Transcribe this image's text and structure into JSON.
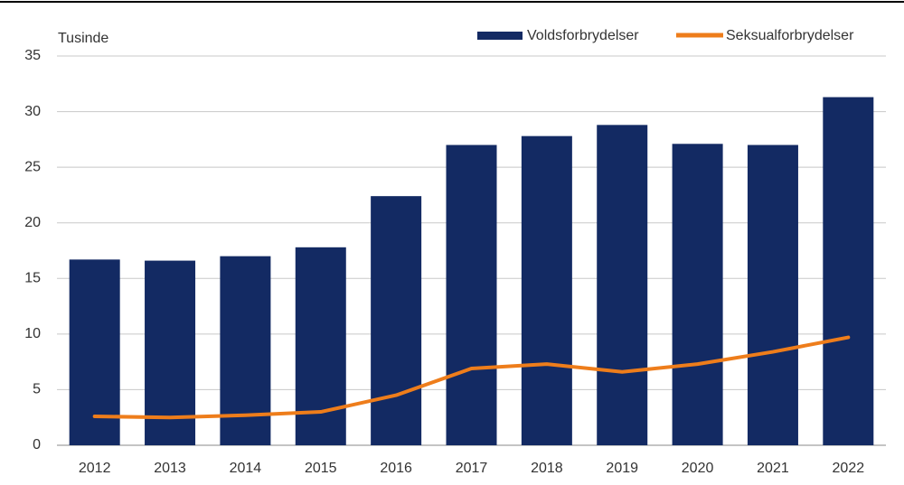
{
  "chart_data": {
    "type": "bar",
    "y_label": "Tusinde",
    "categories": [
      "2012",
      "2013",
      "2014",
      "2015",
      "2016",
      "2017",
      "2018",
      "2019",
      "2020",
      "2021",
      "2022"
    ],
    "series": [
      {
        "name": "Voldsforbrydelser",
        "type": "bar",
        "color": "#132a63",
        "values": [
          16.7,
          16.6,
          17.0,
          17.8,
          22.4,
          27.0,
          27.8,
          28.8,
          27.1,
          27.0,
          31.3
        ]
      },
      {
        "name": "Seksualforbrydelser",
        "type": "line",
        "color": "#ee7d1b",
        "values": [
          2.6,
          2.5,
          2.7,
          3.0,
          4.5,
          6.9,
          7.3,
          6.6,
          7.3,
          8.4,
          9.7
        ]
      }
    ],
    "ylim": [
      0,
      35
    ],
    "yticks": [
      0,
      5,
      10,
      15,
      20,
      25,
      30,
      35
    ],
    "grid": true,
    "legend": "top-right"
  }
}
